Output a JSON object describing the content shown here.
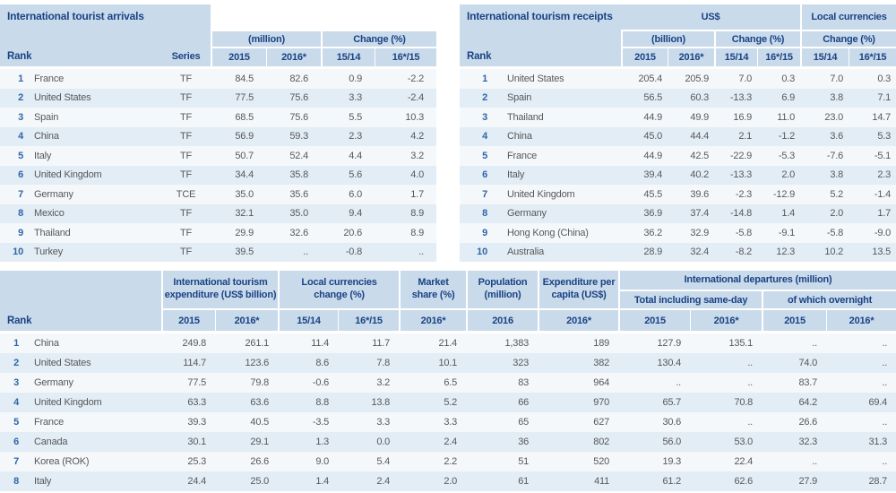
{
  "colors": {
    "header_bg": "#c9daea",
    "navy": "#1a4385",
    "rank_blue": "#2f66a8",
    "text": "#57585a",
    "row_light": "#f5f8fb",
    "row_dark": "#e3edf5"
  },
  "arrivals": {
    "title": "International tourist arrivals",
    "rank_label": "Rank",
    "series_label": "Series",
    "group_unit": "(million)",
    "group_change": "Change (%)",
    "col_headers": [
      "2015",
      "2016*",
      "15/14",
      "16*/15"
    ],
    "rows": [
      {
        "rank": "1",
        "country": "France",
        "series": "TF",
        "v": [
          "84.5",
          "82.6",
          "0.9",
          "-2.2"
        ]
      },
      {
        "rank": "2",
        "country": "United States",
        "series": "TF",
        "v": [
          "77.5",
          "75.6",
          "3.3",
          "-2.4"
        ]
      },
      {
        "rank": "3",
        "country": "Spain",
        "series": "TF",
        "v": [
          "68.5",
          "75.6",
          "5.5",
          "10.3"
        ]
      },
      {
        "rank": "4",
        "country": "China",
        "series": "TF",
        "v": [
          "56.9",
          "59.3",
          "2.3",
          "4.2"
        ]
      },
      {
        "rank": "5",
        "country": "Italy",
        "series": "TF",
        "v": [
          "50.7",
          "52.4",
          "4.4",
          "3.2"
        ]
      },
      {
        "rank": "6",
        "country": "United Kingdom",
        "series": "TF",
        "v": [
          "34.4",
          "35.8",
          "5.6",
          "4.0"
        ]
      },
      {
        "rank": "7",
        "country": "Germany",
        "series": "TCE",
        "v": [
          "35.0",
          "35.6",
          "6.0",
          "1.7"
        ]
      },
      {
        "rank": "8",
        "country": "Mexico",
        "series": "TF",
        "v": [
          "32.1",
          "35.0",
          "9.4",
          "8.9"
        ]
      },
      {
        "rank": "9",
        "country": "Thailand",
        "series": "TF",
        "v": [
          "29.9",
          "32.6",
          "20.6",
          "8.9"
        ]
      },
      {
        "rank": "10",
        "country": "Turkey",
        "series": "TF",
        "v": [
          "39.5",
          "..",
          "-0.8",
          ".."
        ]
      }
    ]
  },
  "receipts": {
    "title": "International tourism receipts",
    "usd_label": "US$",
    "local_label": "Local currencies",
    "rank_label": "Rank",
    "group_unit": "(billion)",
    "group_change_usd": "Change (%)",
    "group_change_local": "Change (%)",
    "col_headers": [
      "2015",
      "2016*",
      "15/14",
      "16*/15",
      "15/14",
      "16*/15"
    ],
    "rows": [
      {
        "rank": "1",
        "country": "United States",
        "v": [
          "205.4",
          "205.9",
          "7.0",
          "0.3",
          "7.0",
          "0.3"
        ]
      },
      {
        "rank": "2",
        "country": "Spain",
        "v": [
          "56.5",
          "60.3",
          "-13.3",
          "6.9",
          "3.8",
          "7.1"
        ]
      },
      {
        "rank": "3",
        "country": "Thailand",
        "v": [
          "44.9",
          "49.9",
          "16.9",
          "11.0",
          "23.0",
          "14.7"
        ]
      },
      {
        "rank": "4",
        "country": "China",
        "v": [
          "45.0",
          "44.4",
          "2.1",
          "-1.2",
          "3.6",
          "5.3"
        ]
      },
      {
        "rank": "5",
        "country": "France",
        "v": [
          "44.9",
          "42.5",
          "-22.9",
          "-5.3",
          "-7.6",
          "-5.1"
        ]
      },
      {
        "rank": "6",
        "country": "Italy",
        "v": [
          "39.4",
          "40.2",
          "-13.3",
          "2.0",
          "3.8",
          "2.3"
        ]
      },
      {
        "rank": "7",
        "country": "United Kingdom",
        "v": [
          "45.5",
          "39.6",
          "-2.3",
          "-12.9",
          "5.2",
          "-1.4"
        ]
      },
      {
        "rank": "8",
        "country": "Germany",
        "v": [
          "36.9",
          "37.4",
          "-14.8",
          "1.4",
          "2.0",
          "1.7"
        ]
      },
      {
        "rank": "9",
        "country": "Hong Kong (China)",
        "v": [
          "36.2",
          "32.9",
          "-5.8",
          "-9.1",
          "-5.8",
          "-9.0"
        ]
      },
      {
        "rank": "10",
        "country": "Australia",
        "v": [
          "28.9",
          "32.4",
          "-8.2",
          "12.3",
          "10.2",
          "13.5"
        ]
      }
    ]
  },
  "expenditure": {
    "rank_label": "Rank",
    "groups": {
      "expenditure": "International tourism\nexpenditure (US$ billion)",
      "local_change": "Local currencies\nchange (%)",
      "market_share": "Market\nshare (%)",
      "population": "Population\n(million)",
      "per_capita": "Expenditure per\ncapita (US$)",
      "departures": "International departures (million)",
      "departures_total": "Total including same-day",
      "departures_overnight": "of which overnight"
    },
    "col_headers": [
      "2015",
      "2016*",
      "15/14",
      "16*/15",
      "2016*",
      "2016",
      "2016*",
      "2015",
      "2016*",
      "2015",
      "2016*"
    ],
    "rows": [
      {
        "rank": "1",
        "country": "China",
        "v": [
          "249.8",
          "261.1",
          "11.4",
          "11.7",
          "21.4",
          "1,383",
          "189",
          "127.9",
          "135.1",
          "..",
          ".."
        ]
      },
      {
        "rank": "2",
        "country": "United States",
        "v": [
          "114.7",
          "123.6",
          "8.6",
          "7.8",
          "10.1",
          "323",
          "382",
          "130.4",
          "..",
          "74.0",
          ".."
        ]
      },
      {
        "rank": "3",
        "country": "Germany",
        "v": [
          "77.5",
          "79.8",
          "-0.6",
          "3.2",
          "6.5",
          "83",
          "964",
          "..",
          "..",
          "83.7",
          ".."
        ]
      },
      {
        "rank": "4",
        "country": "United Kingdom",
        "v": [
          "63.3",
          "63.6",
          "8.8",
          "13.8",
          "5.2",
          "66",
          "970",
          "65.7",
          "70.8",
          "64.2",
          "69.4"
        ]
      },
      {
        "rank": "5",
        "country": "France",
        "v": [
          "39.3",
          "40.5",
          "-3.5",
          "3.3",
          "3.3",
          "65",
          "627",
          "30.6",
          "..",
          "26.6",
          ".."
        ]
      },
      {
        "rank": "6",
        "country": "Canada",
        "v": [
          "30.1",
          "29.1",
          "1.3",
          "0.0",
          "2.4",
          "36",
          "802",
          "56.0",
          "53.0",
          "32.3",
          "31.3"
        ]
      },
      {
        "rank": "7",
        "country": "Korea (ROK)",
        "v": [
          "25.3",
          "26.6",
          "9.0",
          "5.4",
          "2.2",
          "51",
          "520",
          "19.3",
          "22.4",
          "..",
          ".."
        ]
      },
      {
        "rank": "8",
        "country": "Italy",
        "v": [
          "24.4",
          "25.0",
          "1.4",
          "2.4",
          "2.0",
          "61",
          "411",
          "61.2",
          "62.6",
          "27.9",
          "28.7"
        ]
      }
    ]
  }
}
